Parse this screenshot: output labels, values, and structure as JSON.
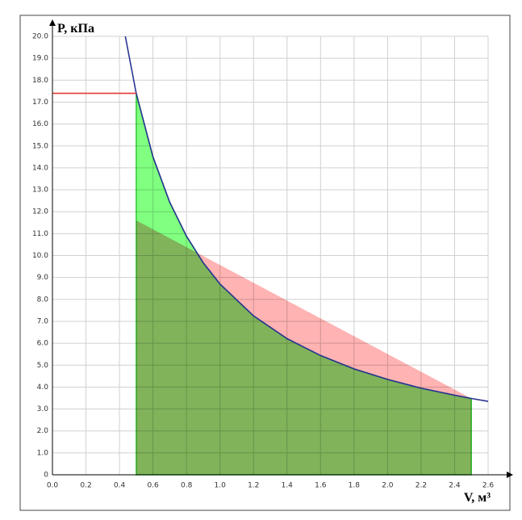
{
  "chart_data": {
    "type": "line",
    "xlabel": "V, м³",
    "ylabel": "P, кПа",
    "xlim": [
      0,
      2.6
    ],
    "ylim": [
      0,
      20
    ],
    "grid": true,
    "xticks": [
      {
        "value": 0,
        "label": "0.0"
      },
      0.2,
      0.4,
      0.6,
      0.8,
      {
        "value": 1,
        "label": "1.0"
      },
      1.2,
      1.4,
      1.6,
      1.8,
      {
        "value": 2,
        "label": "2.0"
      },
      2.2,
      2.4,
      2.6
    ],
    "yticks": [
      0,
      {
        "value": 1,
        "label": "1.0"
      },
      {
        "value": 2,
        "label": "2.0"
      },
      {
        "value": 3,
        "label": "3.0"
      },
      {
        "value": 4,
        "label": "4.0"
      },
      {
        "value": 5,
        "label": "5.0"
      },
      {
        "value": 6,
        "label": "6.0"
      },
      {
        "value": 7,
        "label": "7.0"
      },
      {
        "value": 8,
        "label": "8.0"
      },
      {
        "value": 9,
        "label": "9.0"
      },
      {
        "value": 10,
        "label": "10.0"
      },
      {
        "value": 11,
        "label": "11.0"
      },
      {
        "value": 12,
        "label": "12.0"
      },
      {
        "value": 13,
        "label": "13.0"
      },
      {
        "value": 14,
        "label": "14.0"
      },
      {
        "value": 15,
        "label": "15.0"
      },
      {
        "value": 16,
        "label": "16.0"
      },
      {
        "value": 17,
        "label": "17.0"
      },
      {
        "value": 18,
        "label": "18.0"
      },
      {
        "value": 19,
        "label": "19.0"
      },
      {
        "value": 20,
        "label": "20.0"
      }
    ],
    "series": [
      {
        "type": "area",
        "color": "#ffb3b3",
        "x": [
          0.5,
          2.5
        ],
        "values": [
          11.6,
          3.48
        ]
      },
      {
        "type": "area",
        "color": "#80ff80",
        "stroke": "#33cc33",
        "x": [
          0.5,
          0.6,
          0.7,
          0.8,
          0.9,
          1.0,
          1.2,
          1.4,
          1.6,
          1.8,
          2.0,
          2.2,
          2.4,
          2.5
        ],
        "values": [
          17.4,
          14.5,
          12.43,
          10.88,
          9.67,
          8.7,
          7.25,
          6.21,
          5.44,
          4.83,
          4.35,
          3.95,
          3.63,
          3.48
        ]
      },
      {
        "type": "line",
        "color": "#283593",
        "x": [
          0.435,
          0.5,
          0.6,
          0.7,
          0.8,
          0.9,
          1.0,
          1.2,
          1.4,
          1.6,
          1.8,
          2.0,
          2.2,
          2.4,
          2.5,
          2.6
        ],
        "values": [
          20.0,
          17.4,
          14.5,
          12.43,
          10.88,
          9.67,
          8.7,
          7.25,
          6.21,
          5.44,
          4.83,
          4.35,
          3.95,
          3.63,
          3.48,
          3.35
        ]
      },
      {
        "type": "line",
        "color": "#e53935",
        "x": [
          0,
          0.5
        ],
        "values": [
          17.4,
          17.4
        ]
      }
    ]
  }
}
